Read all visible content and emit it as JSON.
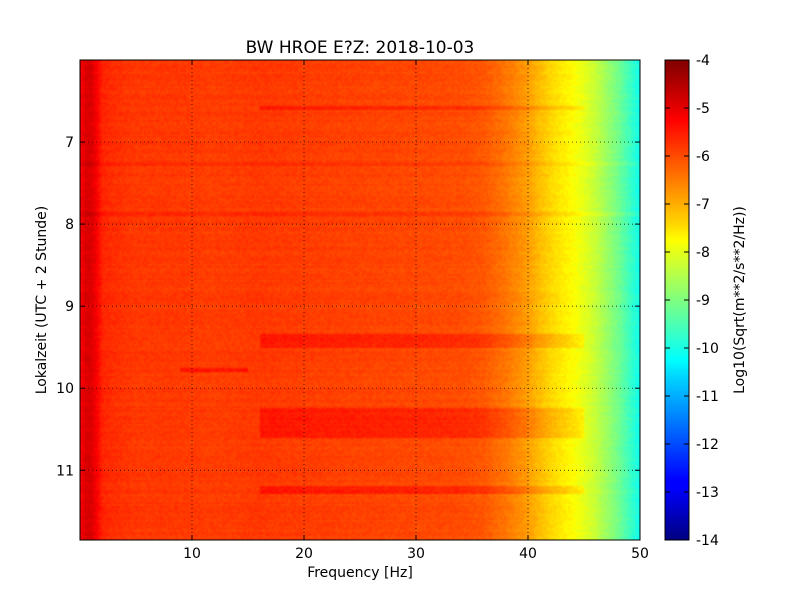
{
  "chart_data": {
    "type": "heatmap",
    "title": "BW HROE E?Z: 2018-10-03",
    "xlabel": "Frequency [Hz]",
    "ylabel": "Lokalzeit (UTC + 2 Stunde)",
    "xlim": [
      0,
      50
    ],
    "ylim": [
      11.85,
      6.0
    ],
    "y_inverted": true,
    "x_ticks": [
      10,
      20,
      30,
      40,
      50
    ],
    "y_ticks": [
      7,
      8,
      9,
      10,
      11
    ],
    "grid": true,
    "grid_style": "dotted",
    "colormap": "jet",
    "colorbar": {
      "label": "Log10(Sqrt(m**2/s**2/Hz))",
      "range": [
        -14,
        -4
      ],
      "ticks": [
        -4,
        -5,
        -6,
        -7,
        -8,
        -9,
        -10,
        -11,
        -12,
        -13,
        -14
      ]
    },
    "spectrum_profile": {
      "frequency_hz": [
        0,
        0.5,
        1,
        1.5,
        2,
        3,
        5,
        8,
        12,
        16,
        20,
        25,
        30,
        34,
        36,
        38,
        40,
        41,
        42,
        43,
        44,
        45,
        46,
        47,
        48,
        49,
        50
      ],
      "log10_amplitude": [
        -5.3,
        -4.9,
        -4.9,
        -5.2,
        -5.6,
        -5.7,
        -5.8,
        -5.8,
        -5.85,
        -5.8,
        -5.85,
        -5.9,
        -5.95,
        -6.0,
        -6.1,
        -6.4,
        -6.8,
        -7.1,
        -7.35,
        -7.55,
        -7.75,
        -8.0,
        -8.3,
        -8.7,
        -9.1,
        -9.6,
        -10.1
      ]
    },
    "bands": [
      {
        "time_start": 6.55,
        "time_end": 6.6,
        "freq_range": [
          16,
          45
        ],
        "log10_amplitude_offset": 0.35
      },
      {
        "time_start": 7.25,
        "time_end": 7.3,
        "freq_range": [
          0,
          50
        ],
        "log10_amplitude_offset": 0.15
      },
      {
        "time_start": 7.85,
        "time_end": 7.9,
        "freq_range": [
          0,
          50
        ],
        "log10_amplitude_offset": 0.2
      },
      {
        "time_start": 9.35,
        "time_end": 9.5,
        "freq_range": [
          16,
          45
        ],
        "log10_amplitude_offset": 0.35
      },
      {
        "time_start": 9.75,
        "time_end": 9.8,
        "freq_range": [
          9,
          15
        ],
        "log10_amplitude_offset": 0.4
      },
      {
        "time_start": 10.25,
        "time_end": 10.6,
        "freq_range": [
          16,
          45
        ],
        "log10_amplitude_offset": 0.35
      },
      {
        "time_start": 11.2,
        "time_end": 11.3,
        "freq_range": [
          16,
          45
        ],
        "log10_amplitude_offset": 0.35
      }
    ]
  }
}
